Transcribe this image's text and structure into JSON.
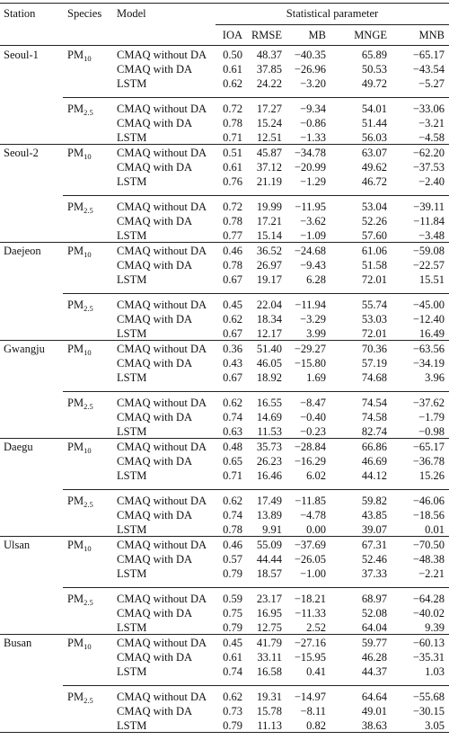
{
  "table": {
    "header": {
      "station": "Station",
      "species": "Species",
      "model": "Model",
      "group": "Statistical parameter",
      "params": [
        "IOA",
        "RMSE",
        "MB",
        "MNGE",
        "MNB"
      ]
    },
    "stations": [
      {
        "name": "Seoul-1",
        "groups": [
          {
            "species": {
              "base": "PM",
              "sub": "10"
            },
            "rows": [
              {
                "model": "CMAQ without DA",
                "values": [
                  "0.50",
                  "48.37",
                  "−40.35",
                  "65.89",
                  "−65.17"
                ]
              },
              {
                "model": "CMAQ with DA",
                "values": [
                  "0.61",
                  "37.85",
                  "−26.96",
                  "50.53",
                  "−43.54"
                ]
              },
              {
                "model": "LSTM",
                "values": [
                  "0.62",
                  "24.22",
                  "−3.20",
                  "49.72",
                  "−5.27"
                ]
              }
            ]
          },
          {
            "species": {
              "base": "PM",
              "sub": "2.5"
            },
            "rows": [
              {
                "model": "CMAQ without DA",
                "values": [
                  "0.72",
                  "17.27",
                  "−9.34",
                  "54.01",
                  "−33.06"
                ]
              },
              {
                "model": "CMAQ with DA",
                "values": [
                  "0.78",
                  "15.24",
                  "−0.86",
                  "51.44",
                  "−3.21"
                ]
              },
              {
                "model": "LSTM",
                "values": [
                  "0.71",
                  "12.51",
                  "−1.33",
                  "56.03",
                  "−4.58"
                ]
              }
            ]
          }
        ]
      },
      {
        "name": "Seoul-2",
        "groups": [
          {
            "species": {
              "base": "PM",
              "sub": "10"
            },
            "rows": [
              {
                "model": "CMAQ without DA",
                "values": [
                  "0.51",
                  "45.87",
                  "−34.78",
                  "63.07",
                  "−62.20"
                ]
              },
              {
                "model": "CMAQ with DA",
                "values": [
                  "0.61",
                  "37.12",
                  "−20.99",
                  "49.62",
                  "−37.53"
                ]
              },
              {
                "model": "LSTM",
                "values": [
                  "0.76",
                  "21.19",
                  "−1.29",
                  "46.72",
                  "−2.40"
                ]
              }
            ]
          },
          {
            "species": {
              "base": "PM",
              "sub": "2.5"
            },
            "rows": [
              {
                "model": "CMAQ without DA",
                "values": [
                  "0.72",
                  "19.99",
                  "−11.95",
                  "53.04",
                  "−39.11"
                ]
              },
              {
                "model": "CMAQ with DA",
                "values": [
                  "0.78",
                  "17.21",
                  "−3.62",
                  "52.26",
                  "−11.84"
                ]
              },
              {
                "model": "LSTM",
                "values": [
                  "0.77",
                  "15.14",
                  "−1.09",
                  "57.60",
                  "−3.48"
                ]
              }
            ]
          }
        ]
      },
      {
        "name": "Daejeon",
        "groups": [
          {
            "species": {
              "base": "PM",
              "sub": "10"
            },
            "rows": [
              {
                "model": "CMAQ without DA",
                "values": [
                  "0.46",
                  "36.52",
                  "−24.68",
                  "61.06",
                  "−59.08"
                ]
              },
              {
                "model": "CMAQ with DA",
                "values": [
                  "0.78",
                  "26.97",
                  "−9.43",
                  "51.58",
                  "−22.57"
                ]
              },
              {
                "model": "LSTM",
                "values": [
                  "0.67",
                  "19.17",
                  "6.28",
                  "72.01",
                  "15.51"
                ]
              }
            ]
          },
          {
            "species": {
              "base": "PM",
              "sub": "2.5"
            },
            "rows": [
              {
                "model": "CMAQ without DA",
                "values": [
                  "0.45",
                  "22.04",
                  "−11.94",
                  "55.74",
                  "−45.00"
                ]
              },
              {
                "model": "CMAQ with DA",
                "values": [
                  "0.62",
                  "18.34",
                  "−3.29",
                  "53.03",
                  "−12.40"
                ]
              },
              {
                "model": "LSTM",
                "values": [
                  "0.67",
                  "12.17",
                  "3.99",
                  "72.01",
                  "16.49"
                ]
              }
            ]
          }
        ]
      },
      {
        "name": "Gwangju",
        "groups": [
          {
            "species": {
              "base": "PM",
              "sub": "10"
            },
            "rows": [
              {
                "model": "CMAQ without DA",
                "values": [
                  "0.36",
                  "51.40",
                  "−29.27",
                  "70.36",
                  "−63.56"
                ]
              },
              {
                "model": "CMAQ with DA",
                "values": [
                  "0.43",
                  "46.05",
                  "−15.80",
                  "57.19",
                  "−34.19"
                ]
              },
              {
                "model": "LSTM",
                "values": [
                  "0.67",
                  "18.92",
                  "1.69",
                  "74.68",
                  "3.96"
                ]
              }
            ]
          },
          {
            "species": {
              "base": "PM",
              "sub": "2.5"
            },
            "rows": [
              {
                "model": "CMAQ without DA",
                "values": [
                  "0.62",
                  "16.55",
                  "−8.47",
                  "74.54",
                  "−37.62"
                ]
              },
              {
                "model": "CMAQ with DA",
                "values": [
                  "0.74",
                  "14.69",
                  "−0.40",
                  "74.58",
                  "−1.79"
                ]
              },
              {
                "model": "LSTM",
                "values": [
                  "0.63",
                  "11.53",
                  "−0.23",
                  "82.74",
                  "−0.98"
                ]
              }
            ]
          }
        ]
      },
      {
        "name": "Daegu",
        "groups": [
          {
            "species": {
              "base": "PM",
              "sub": "10"
            },
            "rows": [
              {
                "model": "CMAQ without DA",
                "values": [
                  "0.48",
                  "35.73",
                  "−28.84",
                  "66.86",
                  "−65.17"
                ]
              },
              {
                "model": "CMAQ with DA",
                "values": [
                  "0.65",
                  "26.23",
                  "−16.29",
                  "46.69",
                  "−36.78"
                ]
              },
              {
                "model": "LSTM",
                "values": [
                  "0.71",
                  "16.46",
                  "6.02",
                  "44.12",
                  "15.26"
                ]
              }
            ]
          },
          {
            "species": {
              "base": "PM",
              "sub": "2.5"
            },
            "rows": [
              {
                "model": "CMAQ without DA",
                "values": [
                  "0.62",
                  "17.49",
                  "−11.85",
                  "59.82",
                  "−46.06"
                ]
              },
              {
                "model": "CMAQ with DA",
                "values": [
                  "0.74",
                  "13.89",
                  "−4.78",
                  "43.85",
                  "−18.56"
                ]
              },
              {
                "model": "LSTM",
                "values": [
                  "0.78",
                  "9.91",
                  "0.00",
                  "39.07",
                  "0.01"
                ]
              }
            ]
          }
        ]
      },
      {
        "name": "Ulsan",
        "groups": [
          {
            "species": {
              "base": "PM",
              "sub": "10"
            },
            "rows": [
              {
                "model": "CMAQ without DA",
                "values": [
                  "0.46",
                  "55.09",
                  "−37.69",
                  "67.31",
                  "−70.50"
                ]
              },
              {
                "model": "CMAQ with DA",
                "values": [
                  "0.57",
                  "44.44",
                  "−26.05",
                  "52.46",
                  "−48.38"
                ]
              },
              {
                "model": "LSTM",
                "values": [
                  "0.79",
                  "18.57",
                  "−1.00",
                  "37.33",
                  "−2.21"
                ]
              }
            ]
          },
          {
            "species": {
              "base": "PM",
              "sub": "2.5"
            },
            "rows": [
              {
                "model": "CMAQ without DA",
                "values": [
                  "0.59",
                  "23.17",
                  "−18.21",
                  "68.97",
                  "−64.28"
                ]
              },
              {
                "model": "CMAQ with DA",
                "values": [
                  "0.75",
                  "16.95",
                  "−11.33",
                  "52.08",
                  "−40.02"
                ]
              },
              {
                "model": "LSTM",
                "values": [
                  "0.79",
                  "12.75",
                  "2.52",
                  "64.04",
                  "9.39"
                ]
              }
            ]
          }
        ]
      },
      {
        "name": "Busan",
        "groups": [
          {
            "species": {
              "base": "PM",
              "sub": "10"
            },
            "rows": [
              {
                "model": "CMAQ without DA",
                "values": [
                  "0.45",
                  "41.79",
                  "−27.16",
                  "59.77",
                  "−60.13"
                ]
              },
              {
                "model": "CMAQ with DA",
                "values": [
                  "0.61",
                  "33.11",
                  "−15.95",
                  "46.28",
                  "−35.31"
                ]
              },
              {
                "model": "LSTM",
                "values": [
                  "0.74",
                  "16.58",
                  "0.41",
                  "44.37",
                  "1.03"
                ]
              }
            ]
          },
          {
            "species": {
              "base": "PM",
              "sub": "2.5"
            },
            "rows": [
              {
                "model": "CMAQ without DA",
                "values": [
                  "0.62",
                  "19.31",
                  "−14.97",
                  "64.64",
                  "−55.68"
                ]
              },
              {
                "model": "CMAQ with DA",
                "values": [
                  "0.73",
                  "15.78",
                  "−8.11",
                  "49.01",
                  "−30.15"
                ]
              },
              {
                "model": "LSTM",
                "values": [
                  "0.79",
                  "11.13",
                  "0.82",
                  "38.63",
                  "3.05"
                ]
              }
            ]
          }
        ]
      }
    ]
  }
}
